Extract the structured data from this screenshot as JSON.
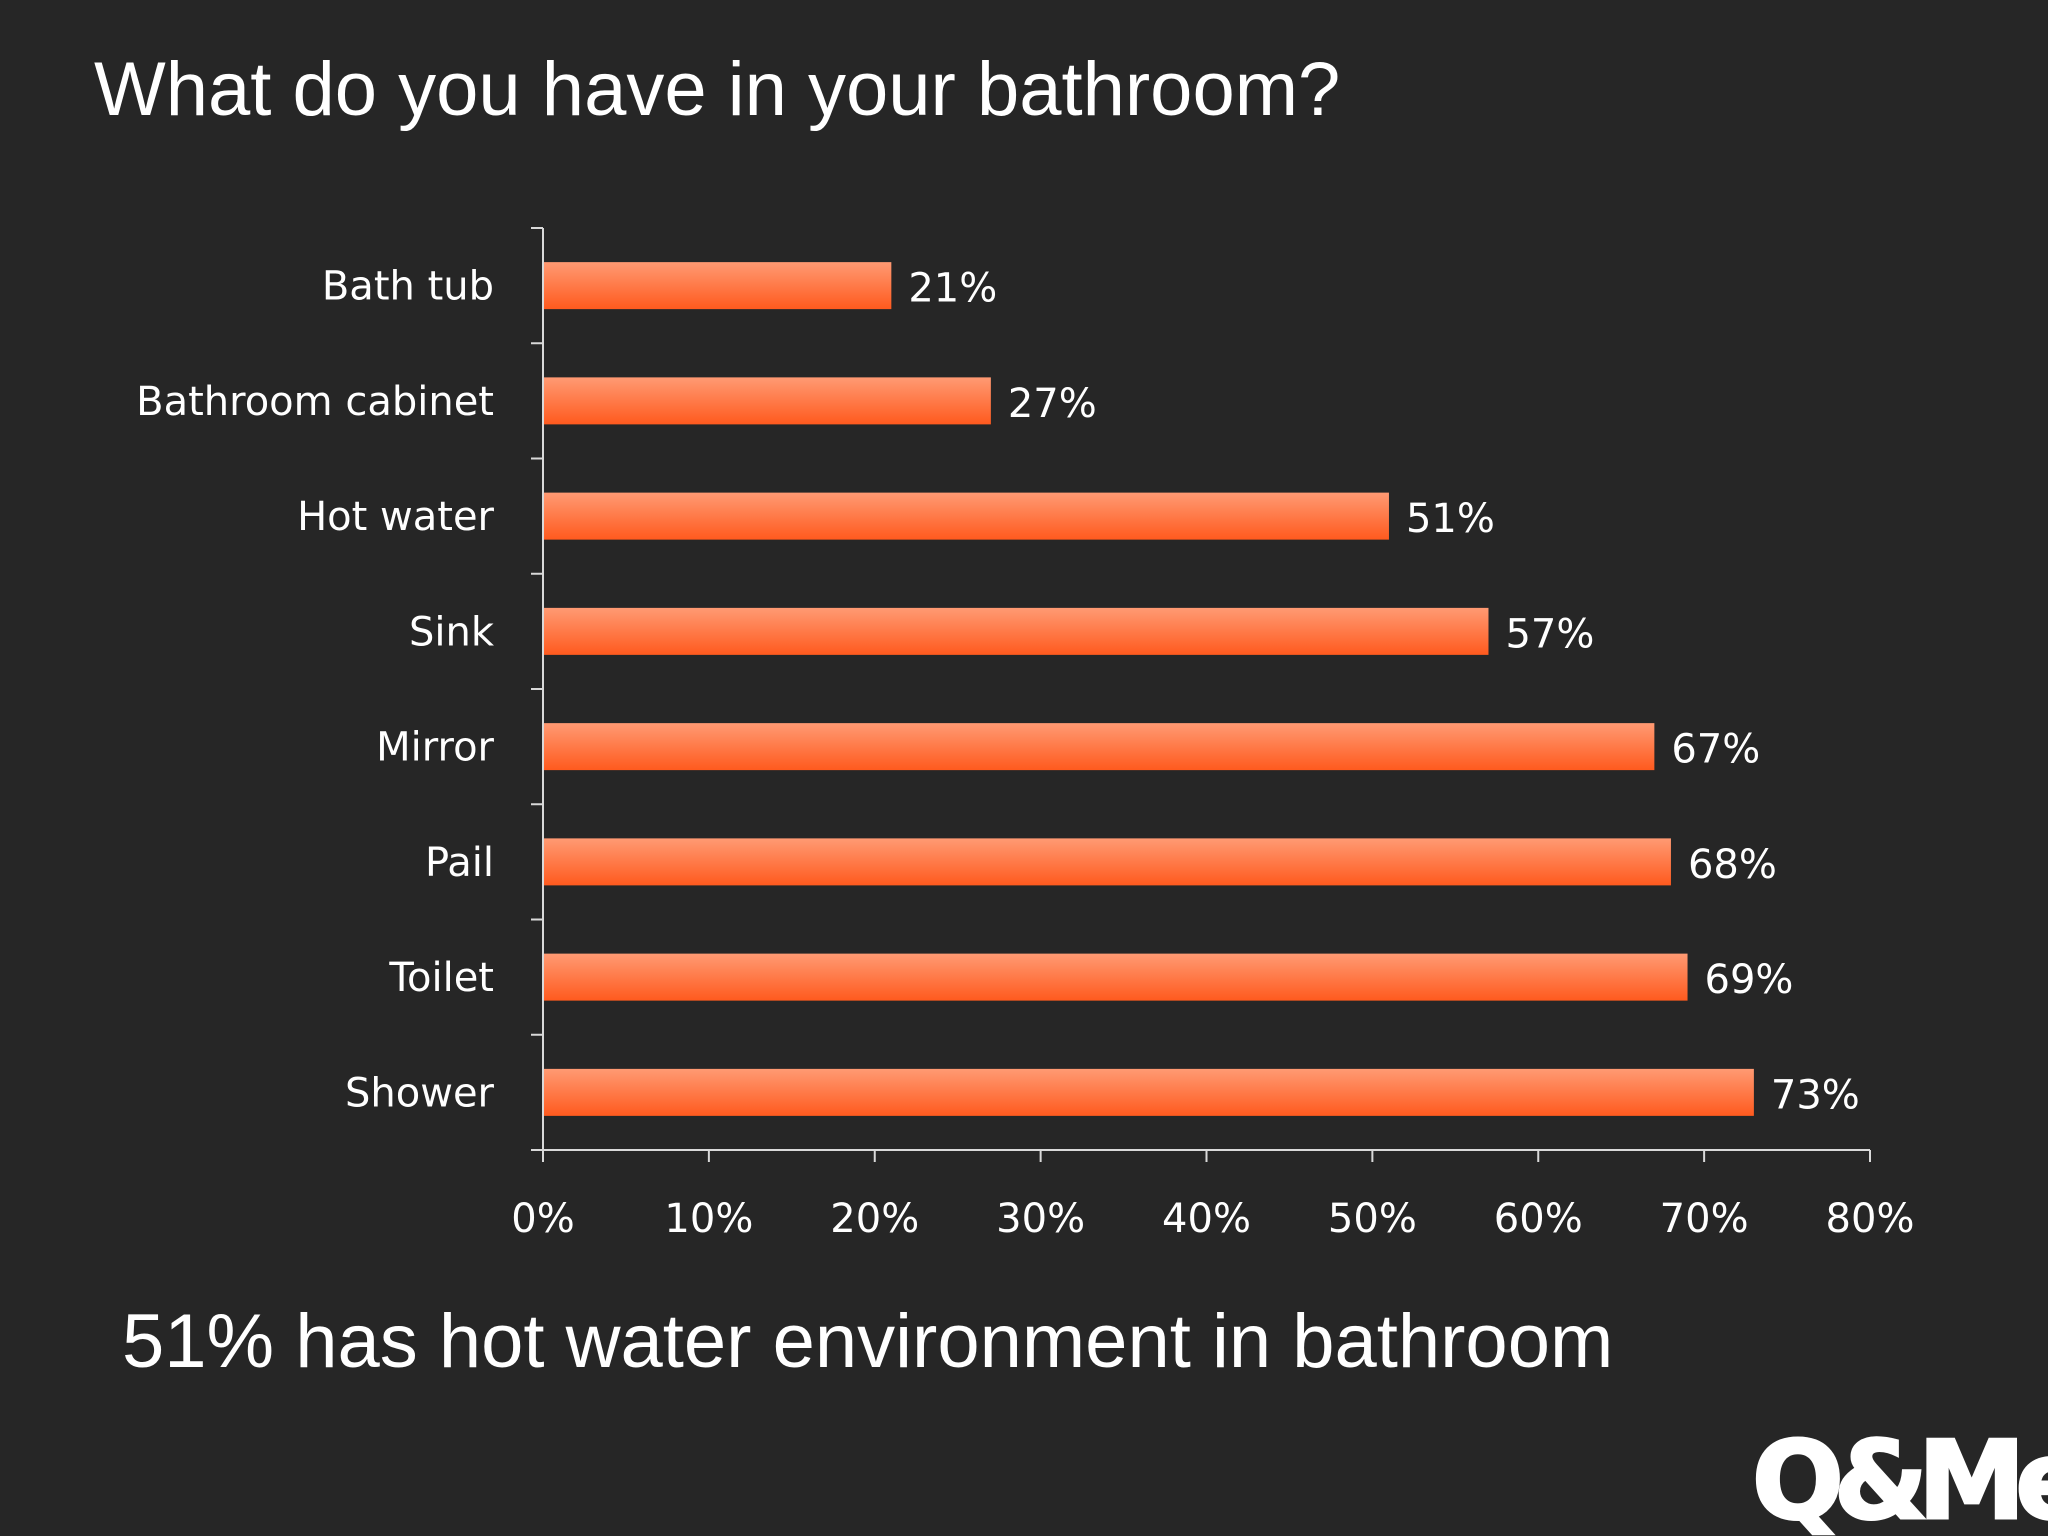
{
  "slide": {
    "title": "What do you have in your bathroom?",
    "caption": "51% has hot water environment in bathroom",
    "logo_text": "Q&Me"
  },
  "colors": {
    "background": "#262626",
    "bar_top": "#ff9a73",
    "bar_bottom": "#ff5a1e",
    "axis": "#d9d9d9",
    "text": "#ffffff"
  },
  "chart_data": {
    "type": "bar",
    "orientation": "horizontal",
    "title": "",
    "xlabel": "",
    "ylabel": "",
    "categories": [
      "Bath tub",
      "Bathroom cabinet",
      "Hot water",
      "Sink",
      "Mirror",
      "Pail",
      "Toilet",
      "Shower"
    ],
    "values": [
      21,
      27,
      51,
      57,
      67,
      68,
      69,
      73
    ],
    "value_labels": [
      "21%",
      "27%",
      "51%",
      "57%",
      "67%",
      "68%",
      "69%",
      "73%"
    ],
    "xlim": [
      0,
      80
    ],
    "x_ticks": [
      0,
      10,
      20,
      30,
      40,
      50,
      60,
      70,
      80
    ],
    "x_tick_labels": [
      "0%",
      "10%",
      "20%",
      "30%",
      "40%",
      "50%",
      "60%",
      "70%",
      "80%"
    ],
    "grid": false,
    "legend": "none"
  }
}
